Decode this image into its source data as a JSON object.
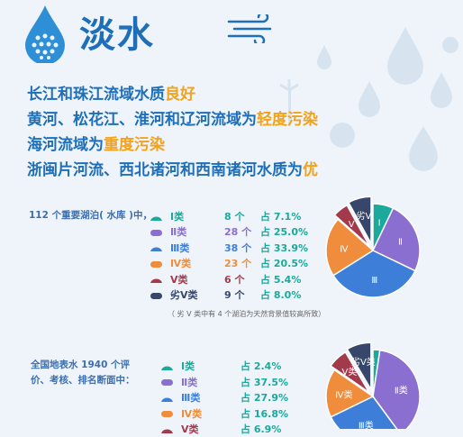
{
  "header": {
    "title": "淡水"
  },
  "headlines": [
    {
      "text": "长江和珠江流域水质",
      "highlight": "良好"
    },
    {
      "text": "黄河、松花江、淮河和辽河流域为",
      "highlight": "轻度污染"
    },
    {
      "text": "海河流域为",
      "highlight": "重度污染"
    },
    {
      "text": "浙闽片河流、西北诸河和西南诸河水质为",
      "highlight": "优"
    }
  ],
  "lakes": {
    "label": "112 个重要湖泊( 水库 )中，",
    "note": "（ 劣 Ⅴ 类中有 4 个湖泊为天然背景值较高所致）",
    "legend": [
      {
        "name": "Ⅰ类",
        "count": "8 个",
        "pct": "占 7.1%"
      },
      {
        "name": "Ⅱ类",
        "count": "28 个",
        "pct": "占 25.0%"
      },
      {
        "name": "Ⅲ类",
        "count": "38 个",
        "pct": "占 33.9%"
      },
      {
        "name": "Ⅳ类",
        "count": "23 个",
        "pct": "占 20.5%"
      },
      {
        "name": "Ⅴ类",
        "count": "6 个",
        "pct": "占 5.4%"
      },
      {
        "name": "劣Ⅴ类",
        "count": "9 个",
        "pct": "占 8.0%"
      }
    ]
  },
  "surface": {
    "label_lines": [
      "全国地表水 1940 个评",
      "价、考核、排名断面中："
    ],
    "legend": [
      {
        "name": "Ⅰ类",
        "pct": "占 2.4%"
      },
      {
        "name": "Ⅱ类",
        "pct": "占 37.5%"
      },
      {
        "name": "Ⅲ类",
        "pct": "占 27.9%"
      },
      {
        "name": "Ⅳ类",
        "pct": "占 16.8%"
      },
      {
        "name": "Ⅴ类",
        "pct": "占 6.9%"
      }
    ]
  },
  "colors": {
    "I": "#1aa99b",
    "II": "#8b6fd0",
    "III": "#3d7fd8",
    "IV": "#f08d3c",
    "V": "#a33a4c",
    "VI": "#37476b",
    "title": "#1f6fb8",
    "highlight": "#f2a21b"
  },
  "icons": [
    "water-drop-icon",
    "wind-icon",
    "droplets-decoration-icon"
  ],
  "chart_data": [
    {
      "type": "pie",
      "categories": [
        "Ⅰ类",
        "Ⅱ类",
        "Ⅲ类",
        "Ⅳ类",
        "Ⅴ类",
        "劣Ⅴ类"
      ],
      "slice_labels": [
        "Ⅰ",
        "Ⅱ",
        "Ⅲ",
        "Ⅳ",
        "Ⅴ",
        "劣Ⅴ"
      ],
      "values": [
        7.1,
        25.0,
        33.9,
        20.5,
        5.4,
        8.0
      ],
      "counts": [
        8,
        28,
        38,
        23,
        6,
        9
      ]
    },
    {
      "type": "pie",
      "categories": [
        "Ⅰ类",
        "Ⅱ类",
        "Ⅲ类",
        "Ⅳ类",
        "Ⅴ类",
        "劣Ⅴ类"
      ],
      "slice_labels": [
        "",
        "Ⅱ类",
        "Ⅲ类",
        "Ⅳ类",
        "Ⅴ类",
        "劣Ⅴ类"
      ],
      "values": [
        2.4,
        37.5,
        27.9,
        16.8,
        6.9,
        8.5
      ]
    }
  ]
}
